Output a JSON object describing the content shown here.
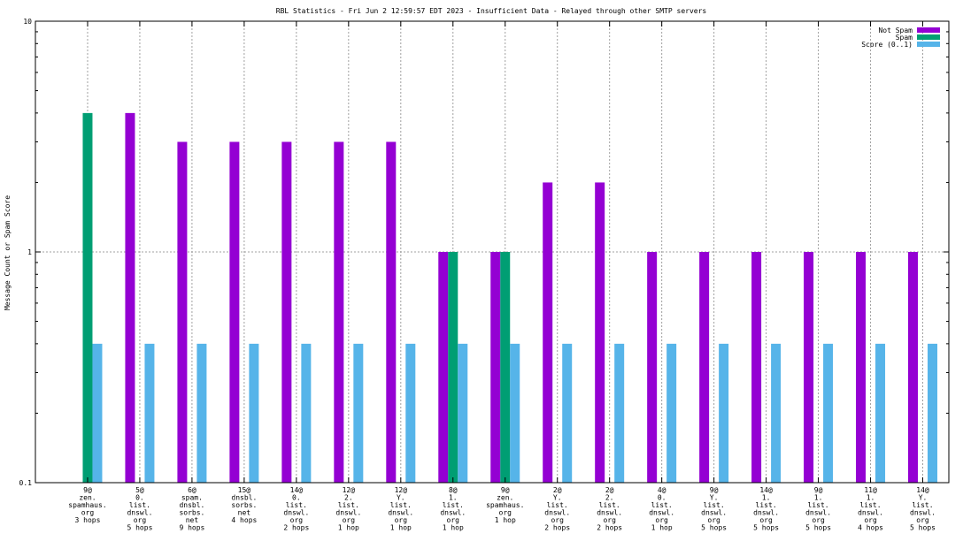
{
  "chart_data": {
    "type": "bar",
    "title": "RBL Statistics - Fri Jun  2 12:59:57 EDT 2023 - Insufficient Data - Relayed through other SMTP servers",
    "ylabel": "Message Count or Spam Score",
    "xlabel": "",
    "yscale": "log",
    "ylim": [
      0.1,
      10
    ],
    "yticks": [
      "0.1",
      "1",
      "10"
    ],
    "grid": true,
    "legend_position": "top-right",
    "categories": [
      [
        "9@",
        "zen.",
        "spamhaus.",
        "org",
        "3 hops"
      ],
      [
        "5@",
        "0.",
        "list.",
        "dnswl.",
        "org",
        "5 hops"
      ],
      [
        "6@",
        "spam.",
        "dnsbl.",
        "sorbs.",
        "net",
        "9 hops"
      ],
      [
        "15@",
        "dnsbl.",
        "sorbs.",
        "net",
        "4 hops"
      ],
      [
        "14@",
        "0.",
        "list.",
        "dnswl.",
        "org",
        "2 hops"
      ],
      [
        "12@",
        "2.",
        "list.",
        "dnswl.",
        "org",
        "1 hop"
      ],
      [
        "12@",
        "Y.",
        "list.",
        "dnswl.",
        "org",
        "1 hop"
      ],
      [
        "8@",
        "1.",
        "list.",
        "dnswl.",
        "org",
        "1 hop"
      ],
      [
        "9@",
        "zen.",
        "spamhaus.",
        "org",
        "1 hop"
      ],
      [
        "2@",
        "Y.",
        "list.",
        "dnswl.",
        "org",
        "2 hops"
      ],
      [
        "2@",
        "2.",
        "list.",
        "dnswl.",
        "org",
        "2 hops"
      ],
      [
        "4@",
        "0.",
        "list.",
        "dnswl.",
        "org",
        "1 hop"
      ],
      [
        "9@",
        "Y.",
        "list.",
        "dnswl.",
        "org",
        "5 hops"
      ],
      [
        "14@",
        "1.",
        "list.",
        "dnswl.",
        "org",
        "5 hops"
      ],
      [
        "9@",
        "1.",
        "list.",
        "dnswl.",
        "org",
        "5 hops"
      ],
      [
        "11@",
        "1.",
        "list.",
        "dnswl.",
        "org",
        "4 hops"
      ],
      [
        "14@",
        "Y.",
        "list.",
        "dnswl.",
        "org",
        "5 hops"
      ]
    ],
    "series": [
      {
        "name": "Not Spam",
        "color": "#9400d3",
        "values": [
          null,
          4,
          3,
          3,
          3,
          3,
          3,
          1,
          1,
          2,
          2,
          1,
          1,
          1,
          1,
          1,
          1
        ]
      },
      {
        "name": "Spam",
        "color": "#009e73",
        "values": [
          4,
          null,
          null,
          null,
          null,
          null,
          null,
          1,
          1,
          null,
          null,
          null,
          null,
          null,
          null,
          null,
          null
        ]
      },
      {
        "name": "Score (0..1)",
        "color": "#56b4e9",
        "values": [
          0.4,
          0.4,
          0.4,
          0.4,
          0.4,
          0.4,
          0.4,
          0.4,
          0.4,
          0.4,
          0.4,
          0.4,
          0.4,
          0.4,
          0.4,
          0.4,
          0.4
        ]
      }
    ]
  }
}
